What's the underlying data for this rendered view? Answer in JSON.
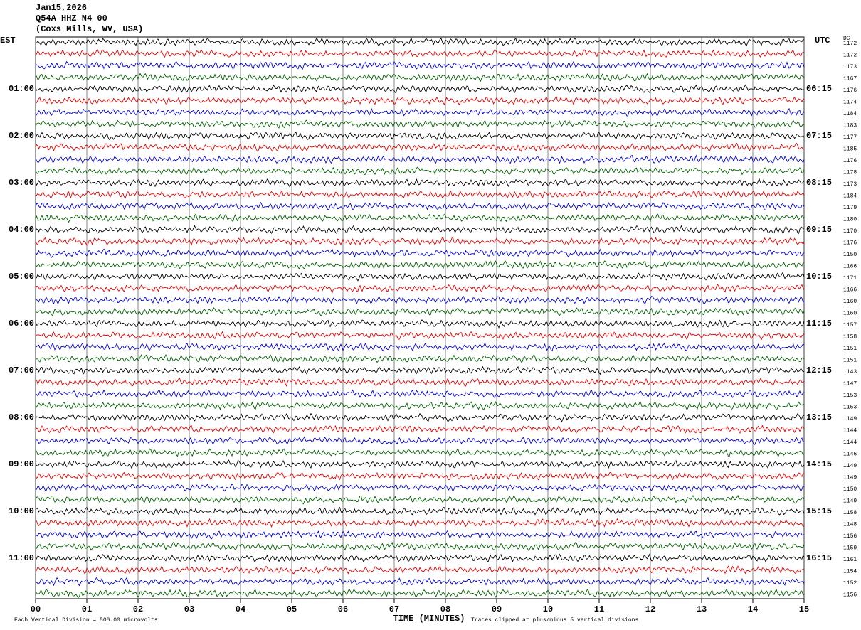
{
  "chart_data": {
    "type": "helicorder",
    "header_lines": [
      "Jan15,2026",
      "Q54A HHZ N4 00",
      "(Coxs Mills, WV, USA)"
    ],
    "left_axis_label": "EST",
    "right_axis_label": "UTC",
    "dc_label": "DC",
    "left_labels": [
      "01:00",
      "02:00",
      "03:00",
      "04:00",
      "05:00",
      "06:00",
      "07:00",
      "08:00",
      "09:00",
      "10:00",
      "11:00"
    ],
    "right_labels": [
      "06:15",
      "07:15",
      "08:15",
      "09:15",
      "10:15",
      "11:15",
      "12:15",
      "13:15",
      "14:15",
      "15:15",
      "16:15"
    ],
    "trace_colors": [
      "#000000",
      "#e00000",
      "#0000d0",
      "#006000"
    ],
    "dc_offsets": [
      1172,
      1172,
      1173,
      1167,
      1176,
      1174,
      1184,
      1183,
      1177,
      1185,
      1176,
      1178,
      1173,
      1184,
      1179,
      1180,
      1170,
      1176,
      1150,
      1166,
      1171,
      1166,
      1160,
      1160,
      1157,
      1158,
      1151,
      1151,
      1143,
      1147,
      1153,
      1153,
      1149,
      1144,
      1144,
      1146,
      1149,
      1149,
      1150,
      1149,
      1158,
      1148,
      1156,
      1159,
      1161,
      1154,
      1152,
      1156
    ],
    "xlabel": "TIME (MINUTES)",
    "xlim": [
      0,
      15
    ],
    "xticks": [
      {
        "value": 0,
        "label": "00"
      },
      {
        "value": 1,
        "label": "01"
      },
      {
        "value": 2,
        "label": "02"
      },
      {
        "value": 3,
        "label": "03"
      },
      {
        "value": 4,
        "label": "04"
      },
      {
        "value": 5,
        "label": "05"
      },
      {
        "value": 6,
        "label": "06"
      },
      {
        "value": 7,
        "label": "07"
      },
      {
        "value": 8,
        "label": "08"
      },
      {
        "value": 9,
        "label": "09"
      },
      10,
      11,
      12,
      13,
      14,
      15
    ],
    "grid": true,
    "scale_note": "Each Vertical Division =  500.00 microvolts",
    "clip_note": "Traces clipped at plus/minus 5 vertical divisions"
  }
}
